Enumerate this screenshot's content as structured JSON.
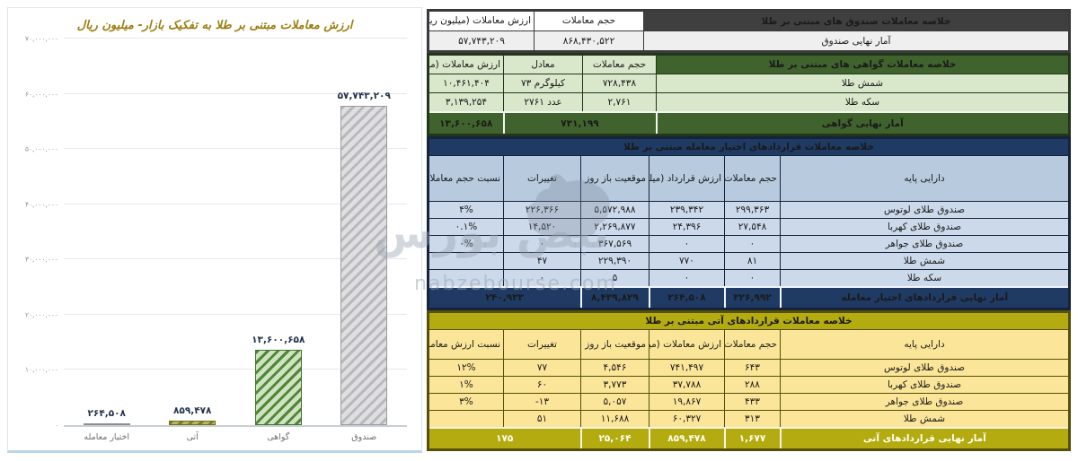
{
  "colors": {
    "funds_header": "#3f3f3f",
    "funds_row": "#efefef",
    "cert_dark": "#40632e",
    "cert_light": "#d9e7cb",
    "options_dark": "#1f3a63",
    "options_colhead": "#b7cade",
    "options_light": "#ccd9ea",
    "futures_dark": "#b3ab10",
    "futures_light": "#fbe598",
    "chart_title": "#9c7e10",
    "bar_label": "#24344e"
  },
  "watermark": {
    "brand_fa": "نبض بورس",
    "domain": "nabzebourse.com"
  },
  "chart_data": {
    "type": "bar",
    "title": "ارزش معاملات مبتنی بر طلا به تفکیک بازار- میلیون ریال",
    "categories": [
      "صندوق",
      "گواهی",
      "آتی",
      "اختیار معامله"
    ],
    "values": [
      57743209,
      13600658,
      859478,
      264508
    ],
    "value_labels": [
      "۵۷,۷۴۳,۲۰۹",
      "۱۳,۶۰۰,۶۵۸",
      "۸۵۹,۴۷۸",
      "۲۶۴,۵۰۸"
    ],
    "xlabel": "",
    "ylabel": "",
    "ylim": [
      0,
      70000000
    ],
    "grid": true,
    "legend": false,
    "yticks": [
      {
        "v": 0,
        "label": "۰"
      },
      {
        "v": 10000000,
        "label": "۱۰,۰۰۰,۰۰۰"
      },
      {
        "v": 20000000,
        "label": "۲۰,۰۰۰,۰۰۰"
      },
      {
        "v": 30000000,
        "label": "۳۰,۰۰۰,۰۰۰"
      },
      {
        "v": 40000000,
        "label": "۴۰,۰۰۰,۰۰۰"
      },
      {
        "v": 50000000,
        "label": "۵۰,۰۰۰,۰۰۰"
      },
      {
        "v": 60000000,
        "label": "۶۰,۰۰۰,۰۰۰"
      },
      {
        "v": 70000000,
        "label": "۷۰,۰۰۰,۰۰۰"
      }
    ],
    "bar_styles": [
      {
        "fill": "#dfdfe1",
        "stripe": "#b9b9bd",
        "border": "#9b9b9f"
      },
      {
        "fill": "#cfe3c0",
        "stripe": "#4f8637",
        "border": "#44732f"
      },
      {
        "fill": "#b9b763",
        "stripe": "#7d7c22",
        "border": "#6f6e1e"
      },
      {
        "fill": "#c9c9c9",
        "stripe": "#a9a9a9",
        "border": "#8f8f8f"
      }
    ]
  },
  "tables": {
    "funds": {
      "title": "خلاصه معاملات صندوق های مبتنی بر طلا",
      "cols": {
        "volume": "حجم معاملات",
        "value": "ارزش معاملات (میلیون ریال)"
      },
      "row": {
        "label": "آمار نهایی صندوق",
        "volume": "۸۶۸,۴۳۰,۵۲۲",
        "value": "۵۷,۷۴۳,۲۰۹"
      }
    },
    "certificates": {
      "title": "خلاصه معاملات گواهی های مبتنی بر طلا",
      "cols": {
        "volume": "حجم معاملات",
        "equiv": "معادل",
        "value": "ارزش معاملات (میلیون ریال)"
      },
      "rows": [
        {
          "label": "شمش طلا",
          "volume": "۷۲۸,۴۳۸",
          "equiv": "۷۳ کیلوگرم",
          "value": "۱۰,۴۶۱,۴۰۴"
        },
        {
          "label": "سکه طلا",
          "volume": "۲,۷۶۱",
          "equiv": "۲۷۶۱ عدد",
          "value": "۳,۱۳۹,۲۵۴"
        }
      ],
      "footer": {
        "label": "آمار نهایی گواهی",
        "volume_equiv": "۷۳۱,۱۹۹",
        "value": "۱۳,۶۰۰,۶۵۸"
      }
    },
    "options": {
      "title": "خلاصه معاملات قراردادهای اختیار معامله مبتنی بر طلا",
      "cols": {
        "asset": "دارایی پایه",
        "volume": "حجم معاملات",
        "value": "ارزش قرارداد (میلیون ریال)",
        "open": "موقعیت باز روز جاری",
        "change": "تغییرات",
        "ratio": "نسبت حجم معاملات اختیار معامله به حجم معاملات دارایی پایه"
      },
      "rows": [
        {
          "label": "صندوق طلای لوتوس",
          "volume": "۲۹۹,۳۶۳",
          "value": "۲۳۹,۳۴۲",
          "open": "۵,۵۷۲,۹۸۸",
          "change": "۲۲۶,۳۶۶",
          "ratio": "۴%"
        },
        {
          "label": "صندوق طلای کهربا",
          "volume": "۲۷,۵۴۸",
          "value": "۲۴,۳۹۶",
          "open": "۲,۲۶۹,۸۷۷",
          "change": "۱۴,۵۲۰",
          "ratio": "۰.۱%"
        },
        {
          "label": "صندوق طلای جواهر",
          "volume": "۰",
          "value": "۰",
          "open": "۳۶۷,۵۶۹",
          "change": "۰",
          "ratio": "۰%"
        },
        {
          "label": "شمش طلا",
          "volume": "۸۱",
          "value": "۷۷۰",
          "open": "۲۲۹,۳۹۰",
          "change": "۴۷",
          "ratio": ""
        },
        {
          "label": "سکه طلا",
          "volume": "۰",
          "value": "۰",
          "open": "۵",
          "change": "۰",
          "ratio": ""
        }
      ],
      "footer": {
        "label": "آمار نهایی قراردادهای اختیار معامله",
        "volume": "۳۲۶,۹۹۲",
        "value": "۲۶۴,۵۰۸",
        "open": "۸,۴۳۹,۸۲۹",
        "change": "۲۴۰,۹۳۳"
      }
    },
    "futures": {
      "title": "خلاصه معاملات قراردادهای آتی مبتنی بر طلا",
      "cols": {
        "asset": "دارایی پایه",
        "volume": "حجم معاملات",
        "value": "ارزش معاملات (میلیون ریال)",
        "open": "موقعیت باز روز جاری",
        "change": "تغییرات",
        "ratio": "نسبت ارزش معاملات آتی به ارزش معاملات دارایی پایه"
      },
      "rows": [
        {
          "label": "صندوق طلای لوتوس",
          "volume": "۶۴۳",
          "value": "۷۴۱,۴۹۷",
          "open": "۴,۵۴۶",
          "change": "۷۷",
          "ratio": "۱۲%"
        },
        {
          "label": "صندوق طلای کهربا",
          "volume": "۲۸۸",
          "value": "۳۷,۷۸۸",
          "open": "۳,۷۷۳",
          "change": "۶۰",
          "ratio": "۱%"
        },
        {
          "label": "صندوق طلای جواهر",
          "volume": "۴۳۳",
          "value": "۱۹,۸۶۷",
          "open": "۵,۰۵۷",
          "change": "-۱۳",
          "ratio": "۳%"
        },
        {
          "label": "شمش طلا",
          "volume": "۳۱۳",
          "value": "۶۰,۳۲۷",
          "open": "۱۱,۶۸۸",
          "change": "۵۱",
          "ratio": ""
        }
      ],
      "footer": {
        "label": "آمار نهایی قراردادهای آتی",
        "volume": "۱,۶۷۷",
        "value": "۸۵۹,۴۷۸",
        "open": "۲۵,۰۶۴",
        "change": "۱۷۵"
      }
    }
  }
}
